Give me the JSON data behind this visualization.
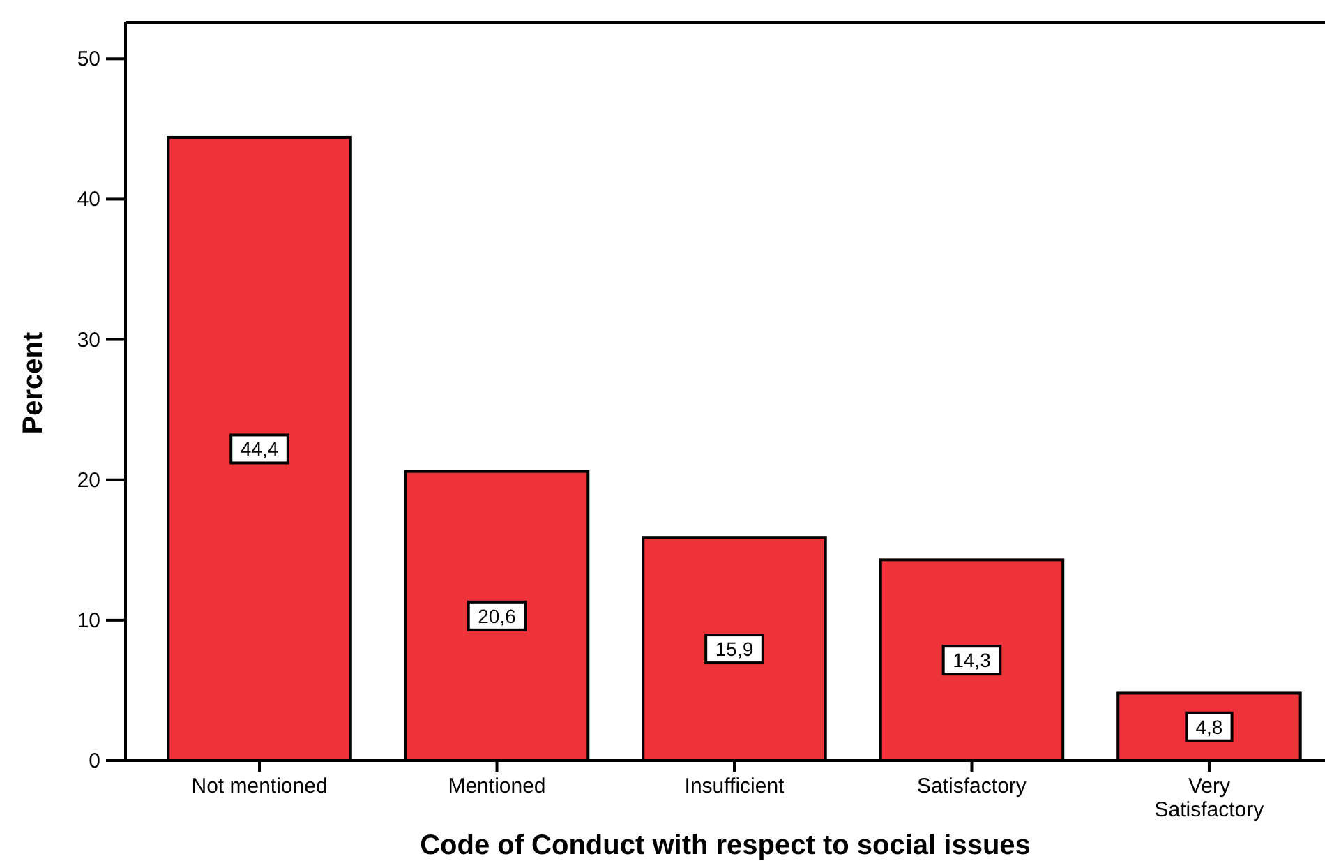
{
  "chart_data": {
    "type": "bar",
    "xlabel": "Code of Conduct with respect to social issues",
    "ylabel": "Percent",
    "categories": [
      "Not mentioned",
      "Mentioned",
      "Insufficient",
      "Satisfactory",
      "Very Satisfactory"
    ],
    "values": [
      44.4,
      20.6,
      15.9,
      14.3,
      4.8
    ],
    "value_labels": [
      "44,4",
      "20,6",
      "15,9",
      "14,3",
      "4,8"
    ],
    "color": "#ef333b",
    "ylim": [
      0,
      52.6
    ],
    "yticks": [
      0,
      10,
      20,
      30,
      40,
      50
    ],
    "grid": false
  }
}
